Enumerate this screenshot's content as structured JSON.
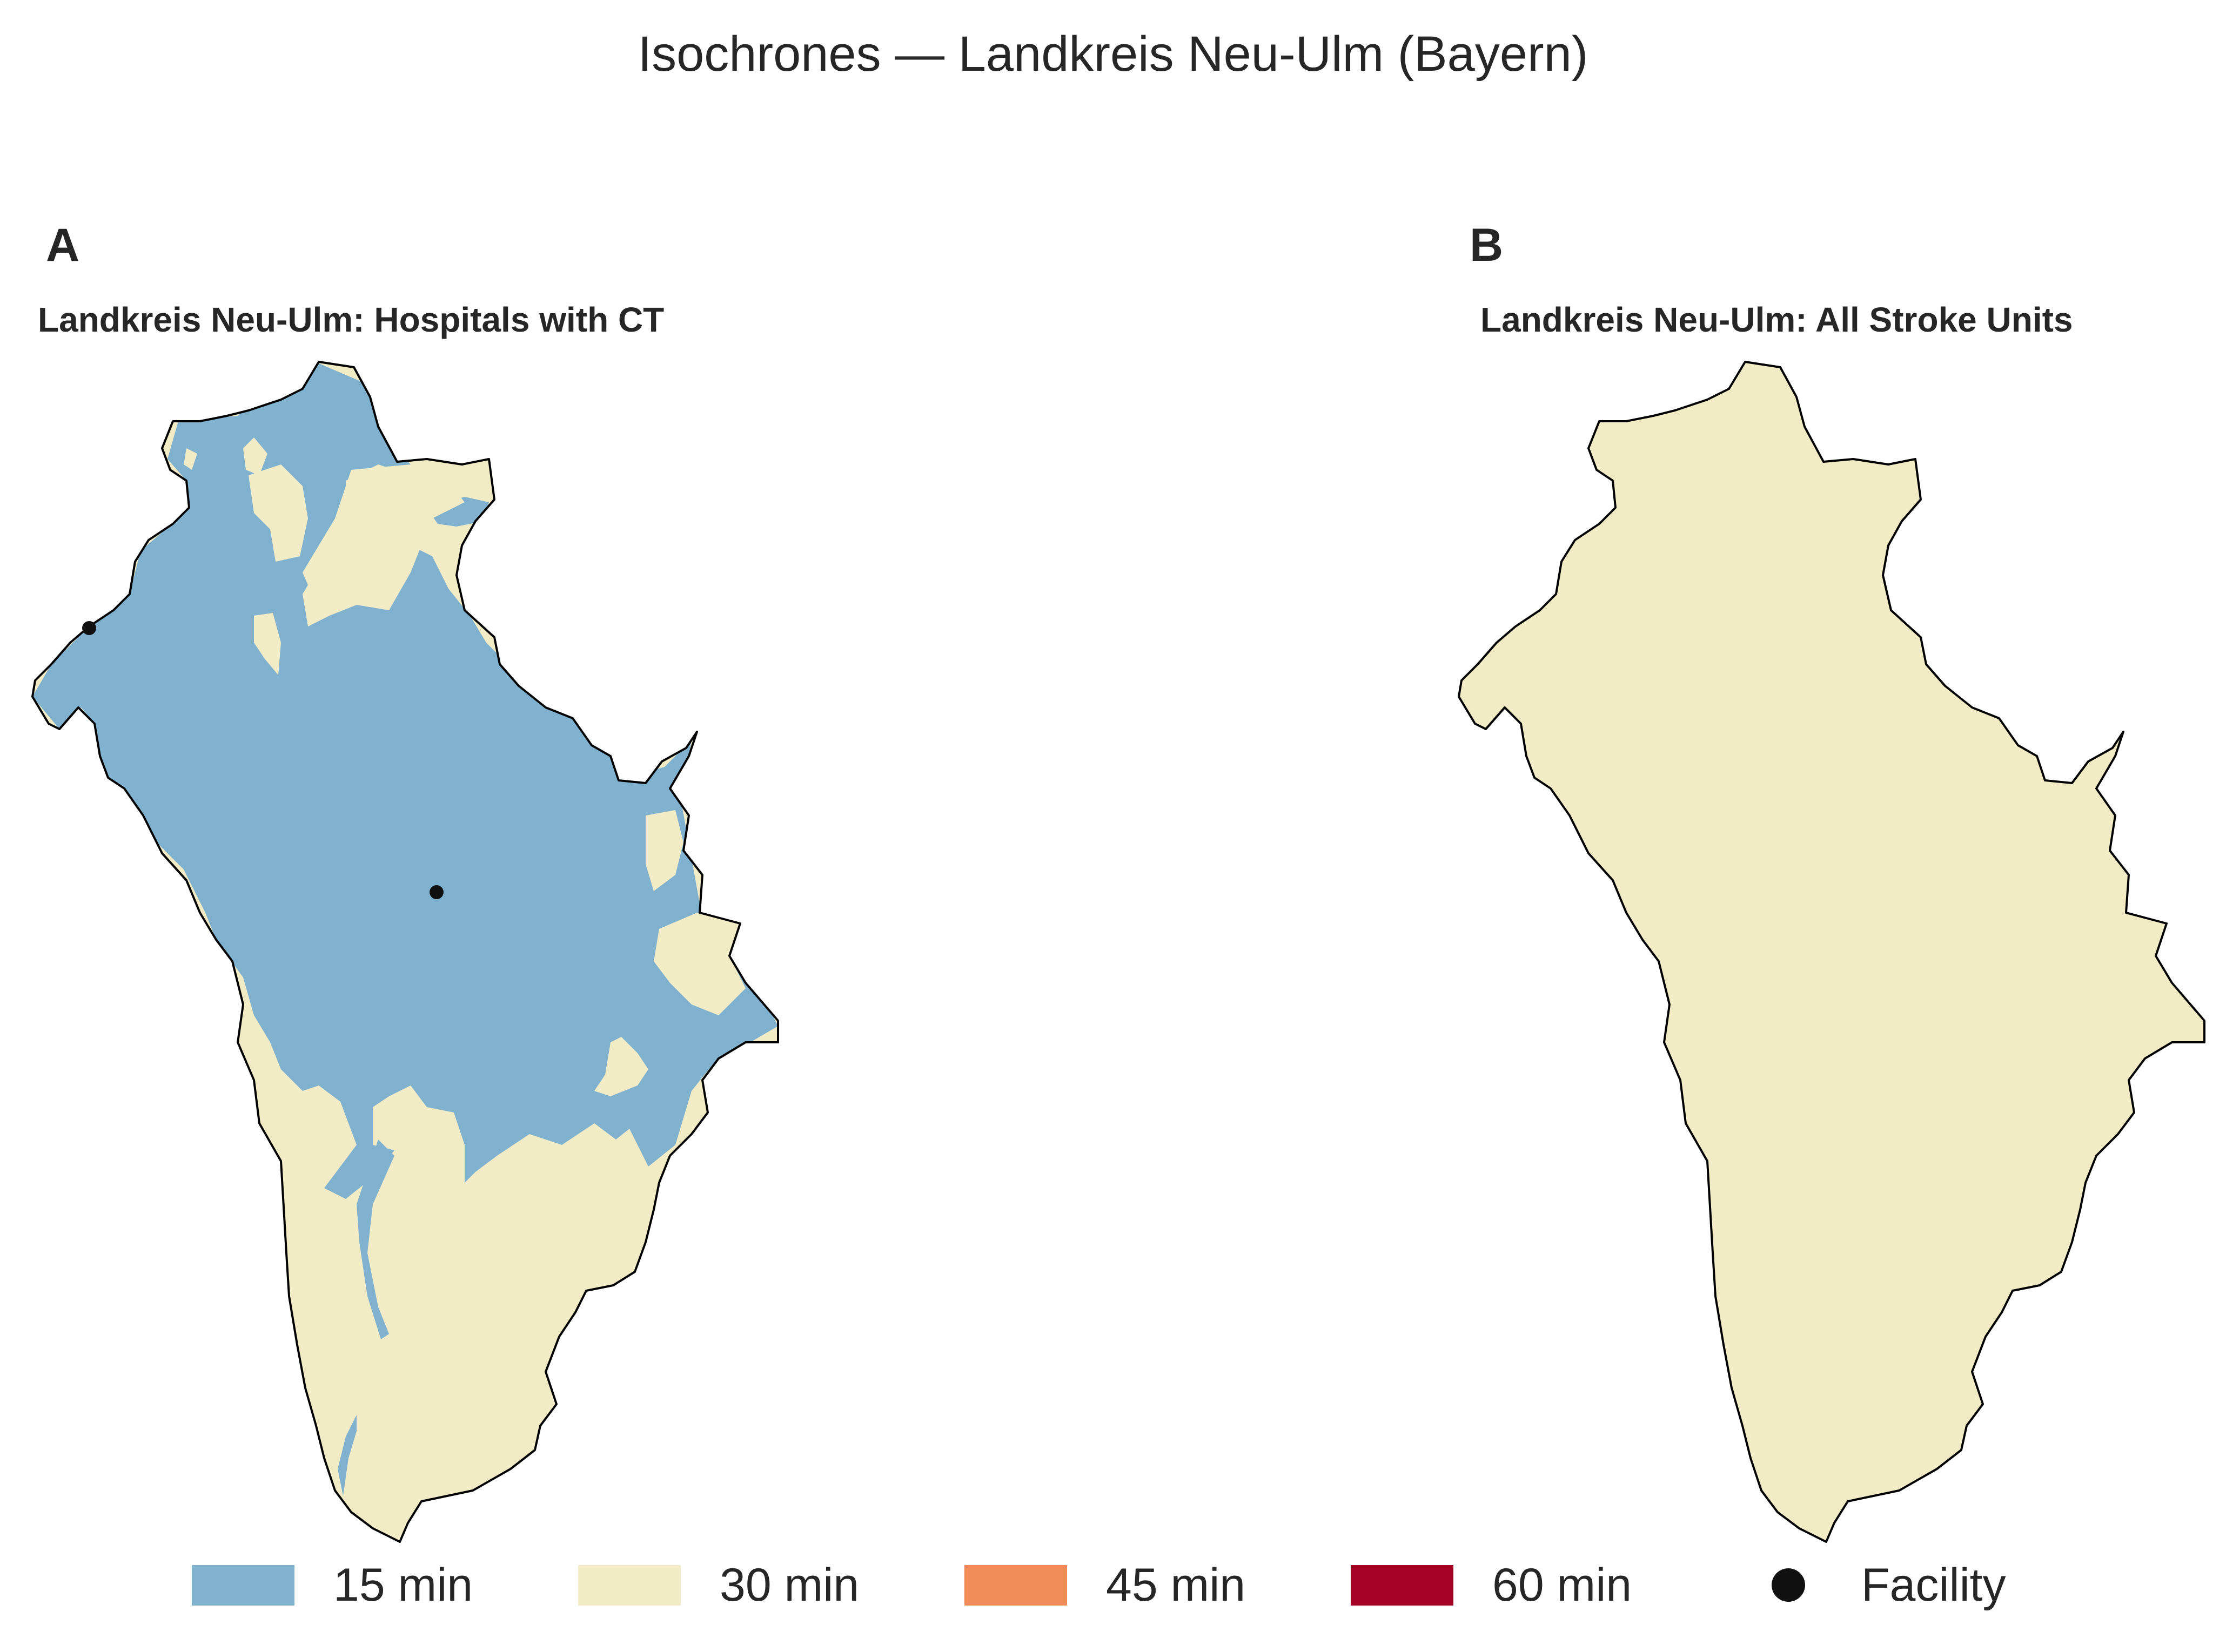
{
  "title": "Isochrones — Landkreis Neu-Ulm (Bayern)",
  "panels": [
    {
      "letter": "A",
      "title": "Landkreis Neu-Ulm: Hospitals with CT"
    },
    {
      "letter": "B",
      "title": "Landkreis Neu-Ulm: All Stroke Units"
    }
  ],
  "legend": [
    {
      "label": "15 min",
      "color": "#80b2d0"
    },
    {
      "label": "30 min",
      "color": "#f2ecc6"
    },
    {
      "label": "45 min",
      "color": "#f28c56"
    },
    {
      "label": "60 min",
      "color": "#a50026"
    },
    {
      "label": "Facility",
      "marker": "dot"
    }
  ],
  "colors": {
    "min15": "#80b2d0",
    "min30": "#f2ecc6",
    "min45": "#f28c56",
    "min60": "#a50026",
    "boundary": "#000000",
    "facility": "#111111"
  }
}
